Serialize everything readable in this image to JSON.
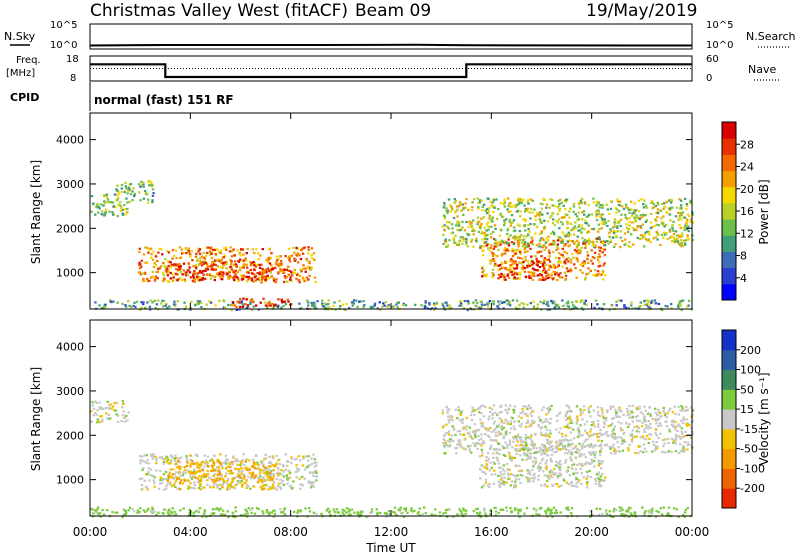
{
  "header": {
    "station": "Christmas Valley West (fitACF)",
    "beam": "Beam 09",
    "date": "19/May/2019"
  },
  "panels": {
    "nsky_label": "N.Sky",
    "nsearch_label": "N.Search",
    "freq_label_1": "Freq.",
    "freq_label_2": "[MHz]",
    "nave_label": "Nave",
    "cpid_label": "CPID",
    "cpid_value": "normal (fast) 151 RF",
    "noise_left_ticks": [
      "10^5",
      "10^0"
    ],
    "noise_right_ticks": [
      "10^5",
      "10^0"
    ],
    "freq_left_ticks": [
      "18",
      "8"
    ],
    "nave_right_ticks": [
      "60",
      "0"
    ]
  },
  "colorbars": {
    "power": {
      "label": "Power [dB]",
      "ticks": [
        "28",
        "24",
        "20",
        "16",
        "12",
        "8",
        "4"
      ],
      "colors": [
        "#0000ff",
        "#2b3dd0",
        "#3e6cb8",
        "#40a078",
        "#6cc04a",
        "#b8d028",
        "#f5d800",
        "#f5a000",
        "#f46a00",
        "#e83000",
        "#d80000"
      ]
    },
    "velocity": {
      "label": "Velocity [m s⁻¹]",
      "ticks": [
        "200",
        "100",
        "50",
        "15",
        "-15",
        "-50",
        "-100",
        "-200"
      ],
      "colors": [
        "#1432c8",
        "#2c5ea8",
        "#3d8a5c",
        "#7ccb3c",
        "#c8c8c8",
        "#f2c200",
        "#f59a00",
        "#f06400",
        "#e82800"
      ]
    }
  },
  "axes": {
    "ylabel": "Slant Range [km]",
    "xlabel": "Time UT",
    "xticks": [
      "00:00",
      "04:00",
      "08:00",
      "12:00",
      "16:00",
      "20:00",
      "00:00"
    ],
    "yticks": [
      "1000",
      "2000",
      "3000",
      "4000"
    ]
  },
  "chart_data": [
    {
      "type": "line",
      "title": "N.Sky / N.Search",
      "x": [
        0,
        3,
        9,
        13,
        15,
        24
      ],
      "series": [
        {
          "name": "N.Sky",
          "values": [
            0.7,
            0.8,
            0.8,
            0.85,
            0.75,
            0.7
          ]
        },
        {
          "name": "N.Search",
          "values": [
            0.8,
            0.9,
            0.9,
            0.9,
            0.85,
            0.8
          ]
        }
      ],
      "ylim": [
        0,
        5
      ]
    },
    {
      "type": "line",
      "title": "Freq. / Nave",
      "x": [
        0,
        3,
        3,
        15,
        15,
        24
      ],
      "series": [
        {
          "name": "Freq.",
          "values": [
            14.7,
            14.7,
            9.6,
            9.6,
            14.7,
            14.7
          ]
        },
        {
          "name": "Nave",
          "values": [
            30,
            30,
            30,
            30,
            30,
            30
          ]
        }
      ],
      "ylim": [
        8,
        18
      ]
    },
    {
      "type": "heatmap",
      "title": "Power",
      "xlabel": "Time UT",
      "ylabel": "Slant Range [km]",
      "xlim": [
        0,
        24
      ],
      "ylim": [
        180,
        4600
      ],
      "colorbar": "Power [dB]",
      "regions": [
        {
          "t": [
            1.9,
            9.0
          ],
          "r": [
            800,
            1600
          ],
          "level": 22
        },
        {
          "t": [
            3.0,
            8.0
          ],
          "r": [
            850,
            1300
          ],
          "level": 27
        },
        {
          "t": [
            15.5,
            20.5
          ],
          "r": [
            850,
            1800
          ],
          "level": 22
        },
        {
          "t": [
            16.2,
            18.5
          ],
          "r": [
            850,
            1300
          ],
          "level": 26
        },
        {
          "t": [
            0.0,
            24.0
          ],
          "r": [
            180,
            400
          ],
          "level": 10
        },
        {
          "t": [
            5.5,
            8.0
          ],
          "r": [
            250,
            450
          ],
          "level": 27
        },
        {
          "t": [
            0.0,
            1.5
          ],
          "r": [
            2300,
            2800
          ],
          "level": 13
        },
        {
          "t": [
            1.0,
            2.5
          ],
          "r": [
            2600,
            3100
          ],
          "level": 12
        },
        {
          "t": [
            14.0,
            24.0
          ],
          "r": [
            1600,
            2700
          ],
          "level": 15
        }
      ]
    },
    {
      "type": "heatmap",
      "title": "Velocity",
      "xlabel": "Time UT",
      "ylabel": "Slant Range [km]",
      "xlim": [
        0,
        24
      ],
      "ylim": [
        180,
        4600
      ],
      "colorbar": "Velocity [m s⁻¹]",
      "regions": [
        {
          "t": [
            1.9,
            9.0
          ],
          "r": [
            800,
            1600
          ],
          "level": 0
        },
        {
          "t": [
            3.0,
            7.5
          ],
          "r": [
            800,
            1450
          ],
          "level": -45
        },
        {
          "t": [
            15.5,
            20.5
          ],
          "r": [
            850,
            1800
          ],
          "level": 0
        },
        {
          "t": [
            0.0,
            24.0
          ],
          "r": [
            180,
            400
          ],
          "level": 30
        },
        {
          "t": [
            0.0,
            1.5
          ],
          "r": [
            2300,
            2800
          ],
          "level": 0
        },
        {
          "t": [
            14.0,
            24.0
          ],
          "r": [
            1600,
            2700
          ],
          "level": 0
        }
      ]
    }
  ]
}
